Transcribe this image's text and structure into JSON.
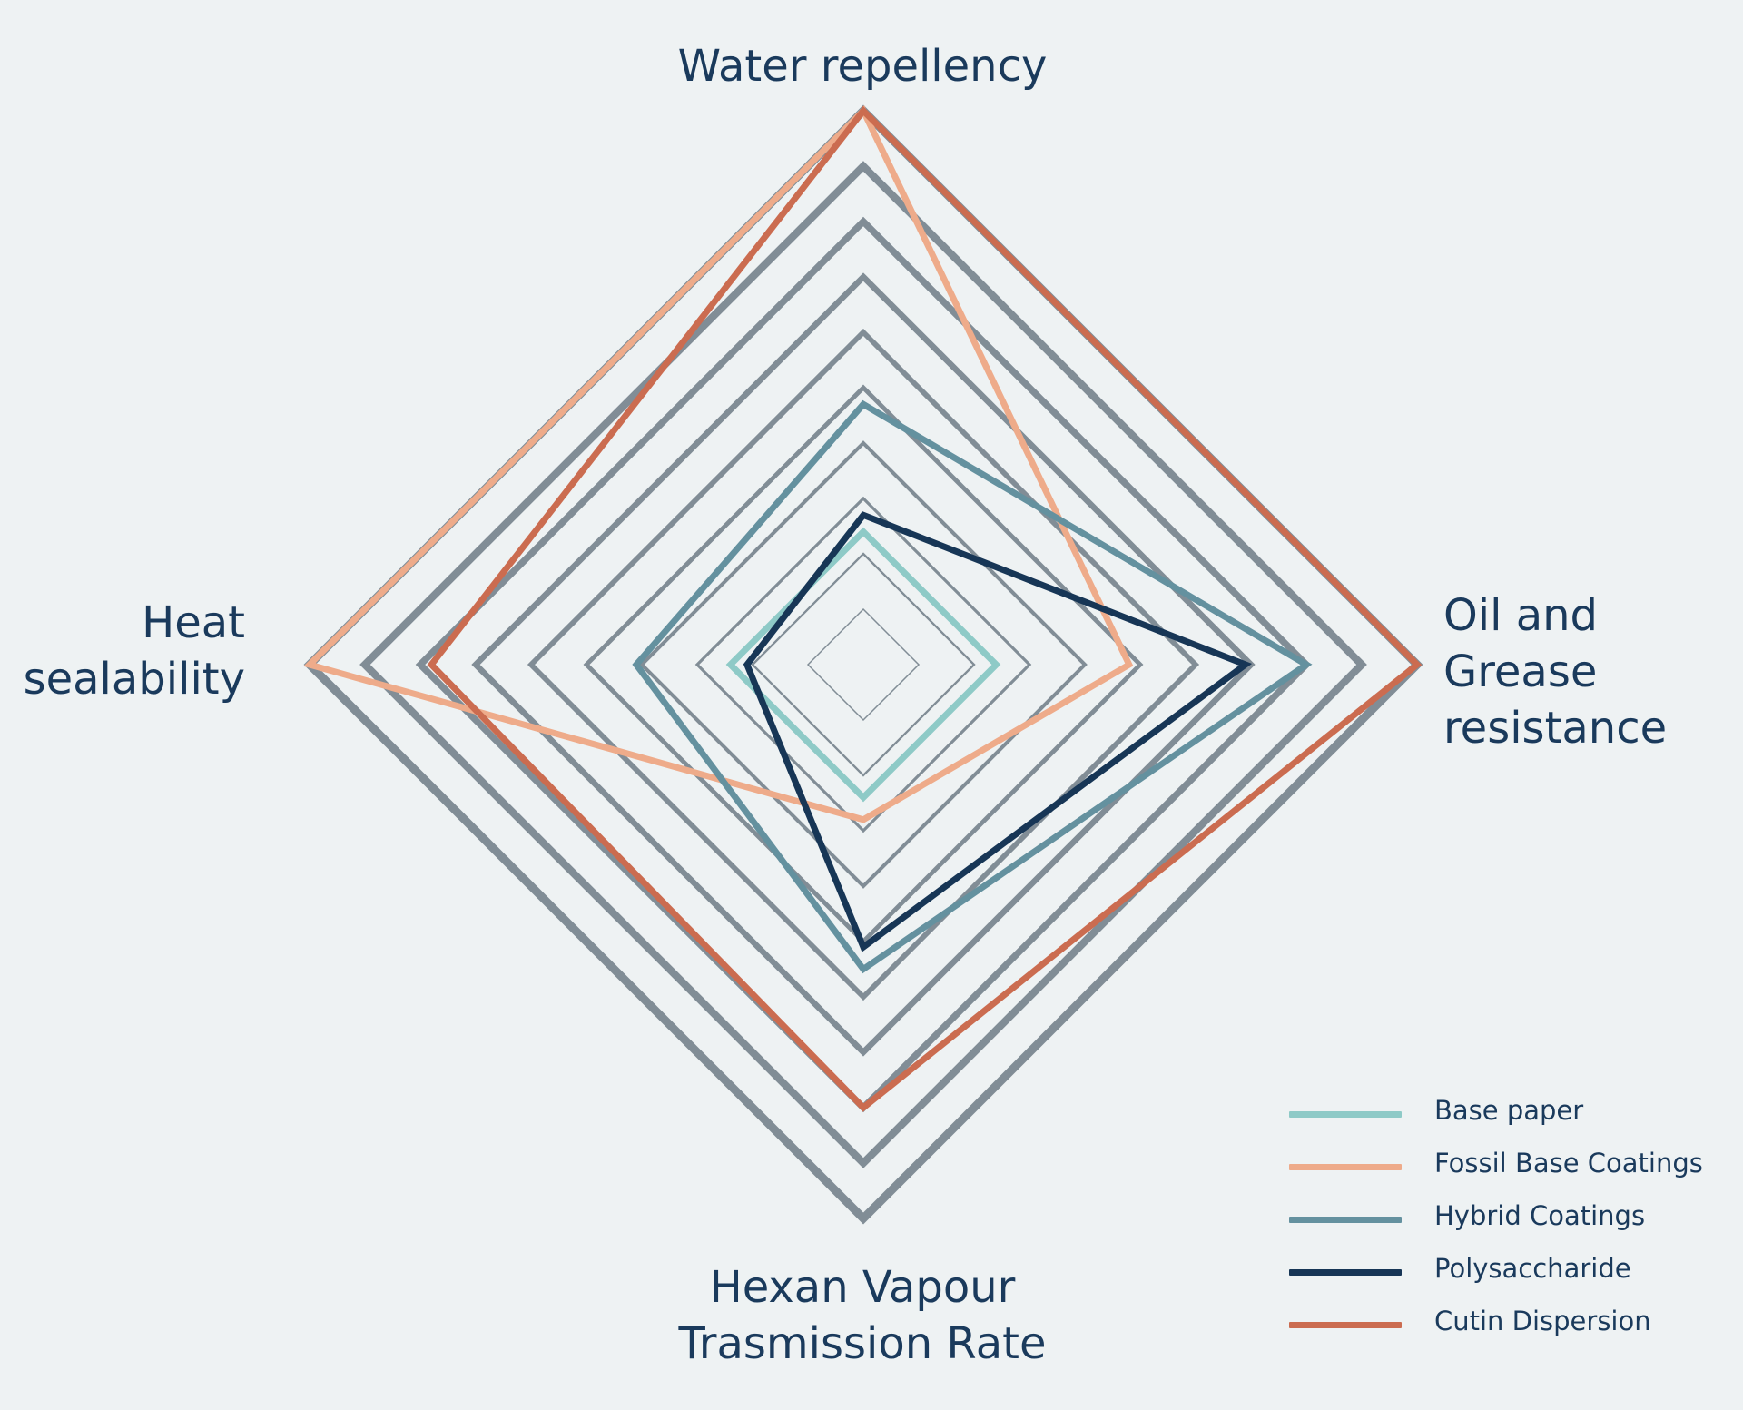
{
  "chart_data": {
    "type": "radar",
    "axes": [
      "Water repellency",
      "Oil and\nGrease\nresistance",
      "Hexan Vapour\nTrasmission Rate",
      "Heat\nsealability"
    ],
    "scale": {
      "min": 0,
      "max": 10,
      "rings": [
        1,
        2,
        3,
        4,
        5,
        6,
        7,
        8,
        9,
        10
      ]
    },
    "grid_color": "#818d96",
    "series": [
      {
        "name": "Base paper",
        "color": "#8ecac7",
        "values": [
          2.4,
          2.4,
          2.4,
          2.4
        ]
      },
      {
        "name": "Fossil Base Coatings",
        "color": "#eeab8a",
        "values": [
          10,
          4.8,
          2.8,
          10
        ]
      },
      {
        "name": "Hybrid Coatings",
        "color": "#64919f",
        "values": [
          4.7,
          8.0,
          5.5,
          4.1
        ]
      },
      {
        "name": "Polysaccharide",
        "color": "#173656",
        "values": [
          2.7,
          6.9,
          5.1,
          2.1
        ]
      },
      {
        "name": "Cutin Dispersion",
        "color": "#cb6c50",
        "values": [
          10,
          10,
          8.0,
          7.8
        ]
      }
    ],
    "legend_position": "bottom-right",
    "grid": true
  }
}
